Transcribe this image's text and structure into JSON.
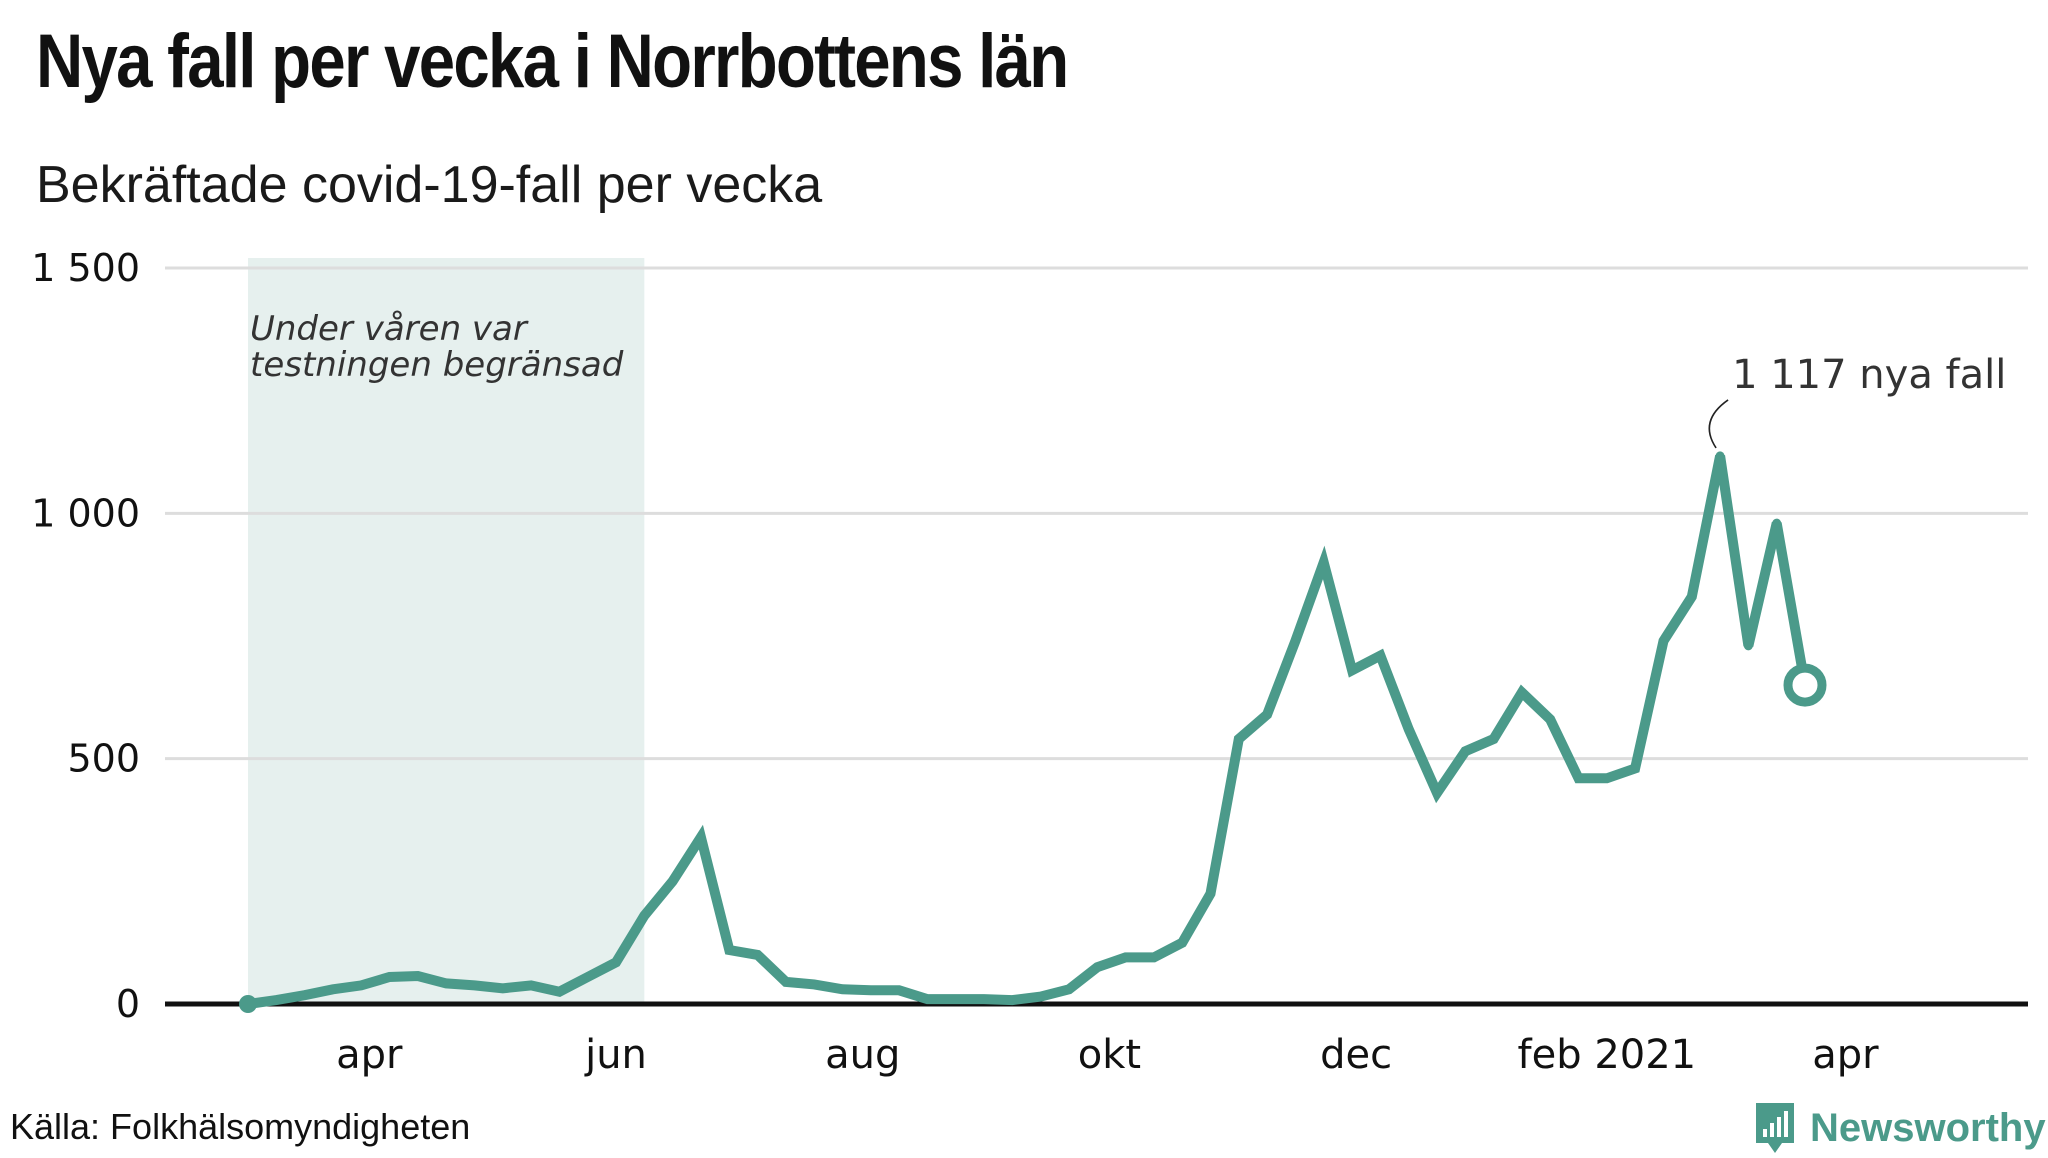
{
  "title": "Nya fall per vecka i Norrbottens län",
  "subtitle": "Bekräftade covid-19-fall per vecka",
  "source": "Källa: Folkhälsomyndigheten",
  "brand": {
    "name": "Newsworthy",
    "icon": "newsworthy-logo-icon",
    "color": "#4b9a8a"
  },
  "colors": {
    "line": "#4b9a8a",
    "shade": "#e6f0ee",
    "grid": "#dddddd",
    "baseline": "#111111"
  },
  "chart_data": {
    "type": "line",
    "title": "Nya fall per vecka i Norrbottens län",
    "subtitle": "Bekräftade covid-19-fall per vecka",
    "xlabel": "",
    "ylabel": "",
    "ylim": [
      0,
      1500
    ],
    "yticks": [
      0,
      500,
      1000,
      1500
    ],
    "ytick_labels": [
      "0",
      "500",
      "1 000",
      "1 500"
    ],
    "xticks": [
      {
        "label": "apr",
        "date": "2020-04-01"
      },
      {
        "label": "jun",
        "date": "2020-06-01"
      },
      {
        "label": "aug",
        "date": "2020-08-01"
      },
      {
        "label": "okt",
        "date": "2020-10-01"
      },
      {
        "label": "dec",
        "date": "2020-12-01"
      },
      {
        "label": "feb 2021",
        "date": "2021-02-01"
      },
      {
        "label": "apr",
        "date": "2021-04-01"
      }
    ],
    "grid": true,
    "shaded_region": {
      "start": "2020-03-02",
      "end": "2020-06-08",
      "label_lines": [
        "Under våren var",
        "testningen begränsad"
      ]
    },
    "annotation": {
      "text": "1 117 nya fall",
      "date": "2021-03-01",
      "value": 1117
    },
    "series": [
      {
        "x": [
          "2020-03-02",
          "2020-03-09",
          "2020-03-16",
          "2020-03-23",
          "2020-03-30",
          "2020-04-06",
          "2020-04-13",
          "2020-04-20",
          "2020-04-27",
          "2020-05-04",
          "2020-05-11",
          "2020-05-18",
          "2020-05-25",
          "2020-06-01",
          "2020-06-08",
          "2020-06-15",
          "2020-06-22",
          "2020-06-29",
          "2020-07-06",
          "2020-07-13",
          "2020-07-20",
          "2020-07-27",
          "2020-08-03",
          "2020-08-10",
          "2020-08-17",
          "2020-08-24",
          "2020-08-31",
          "2020-09-07",
          "2020-09-14",
          "2020-09-21",
          "2020-09-28",
          "2020-10-05",
          "2020-10-12",
          "2020-10-19",
          "2020-10-26",
          "2020-11-02",
          "2020-11-09",
          "2020-11-16",
          "2020-11-23",
          "2020-11-30",
          "2020-12-07",
          "2020-12-14",
          "2020-12-21",
          "2020-12-28",
          "2021-01-04",
          "2021-01-11",
          "2021-01-18",
          "2021-01-25",
          "2021-02-01",
          "2021-02-08",
          "2021-02-15",
          "2021-02-22",
          "2021-03-01",
          "2021-03-08",
          "2021-03-15",
          "2021-03-22"
        ],
        "values": [
          0,
          8,
          18,
          30,
          38,
          55,
          57,
          42,
          38,
          32,
          38,
          25,
          55,
          85,
          180,
          250,
          340,
          110,
          100,
          45,
          40,
          30,
          28,
          28,
          10,
          10,
          10,
          8,
          15,
          30,
          75,
          95,
          95,
          125,
          225,
          540,
          590,
          740,
          900,
          680,
          710,
          560,
          430,
          515,
          540,
          635,
          580,
          460,
          460,
          480,
          740,
          830,
          1117,
          730,
          980,
          650
        ]
      }
    ]
  }
}
